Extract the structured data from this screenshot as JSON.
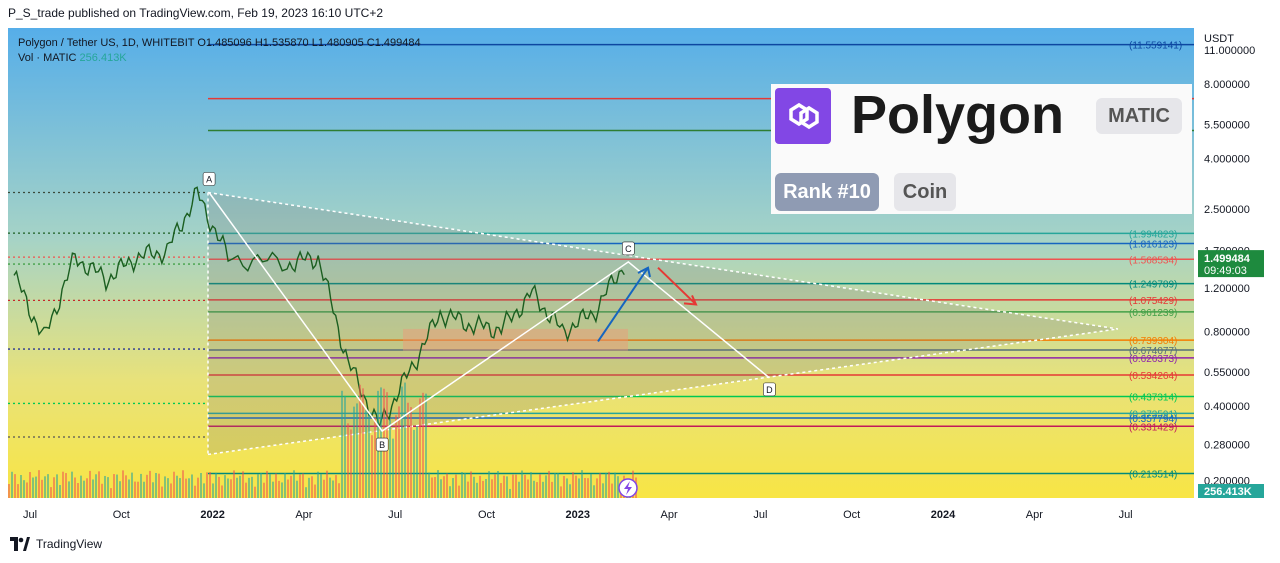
{
  "publisher": "P_S_trade published on TradingView.com, Feb 19, 2023 16:10 UTC+2",
  "legend": {
    "symbol": "Polygon / Tether US, 1D, WHITEBIT",
    "o": "O1.485096",
    "h": "H1.535870",
    "l": "L1.480905",
    "c": "C1.499484",
    "vol_label": "Vol · MATIC",
    "vol_value": "256.413K"
  },
  "badge": {
    "name": "Polygon",
    "ticker": "MATIC",
    "rank": "Rank #10",
    "kind": "Coin"
  },
  "footer": "TradingView",
  "colors": {
    "price_label_bg": "#1e8a3e",
    "volume_label_bg": "#26a69a",
    "gradient_top": "#5aaee8",
    "gradient_bottom": "#f7e34a",
    "brand": "#8247e5"
  },
  "chart_data": {
    "type": "line",
    "title": "Polygon / Tether US, 1D, WHITEBIT",
    "currency": "USDT",
    "yscale": "log",
    "ylim": [
      0.17,
      13.5
    ],
    "y_ticks": [
      "11.000000",
      "8.000000",
      "5.500000",
      "4.000000",
      "2.500000",
      "1.700000",
      "1.200000",
      "0.800000",
      "0.550000",
      "0.400000",
      "0.280000",
      "0.200000"
    ],
    "y_tick_values": [
      11,
      8,
      5.5,
      4,
      2.5,
      1.7,
      1.2,
      0.8,
      0.55,
      0.4,
      0.28,
      0.2
    ],
    "x_ticks": [
      "Jul",
      "Oct",
      "2022",
      "Apr",
      "Jul",
      "Oct",
      "2023",
      "Apr",
      "Jul",
      "Oct",
      "2024",
      "Apr",
      "Jul"
    ],
    "last_price": "1.499484",
    "countdown": "09:49:03",
    "volume_last": "256.413K",
    "price_path": [
      {
        "x": "2021-06",
        "y": 1.35
      },
      {
        "x": "2021-07",
        "y": 0.75
      },
      {
        "x": "2021-08",
        "y": 1.6
      },
      {
        "x": "2021-09",
        "y": 1.3
      },
      {
        "x": "2021-10",
        "y": 1.6
      },
      {
        "x": "2021-11",
        "y": 1.7
      },
      {
        "x": "2021-12",
        "y": 2.9
      },
      {
        "x": "2022-01",
        "y": 1.6
      },
      {
        "x": "2022-03",
        "y": 1.5
      },
      {
        "x": "2022-04",
        "y": 1.6
      },
      {
        "x": "2022-05",
        "y": 0.6
      },
      {
        "x": "2022-06",
        "y": 0.33
      },
      {
        "x": "2022-07",
        "y": 0.55
      },
      {
        "x": "2022-08",
        "y": 0.95
      },
      {
        "x": "2022-09",
        "y": 0.85
      },
      {
        "x": "2022-10",
        "y": 0.82
      },
      {
        "x": "2022-11",
        "y": 1.15
      },
      {
        "x": "2022-12",
        "y": 0.8
      },
      {
        "x": "2023-01",
        "y": 0.95
      },
      {
        "x": "2023-02",
        "y": 1.5
      }
    ],
    "points": [
      {
        "label": "A",
        "x": "2021-12-27",
        "y": 2.92
      },
      {
        "label": "B",
        "x": "2022-06-18",
        "y": 0.317
      },
      {
        "label": "C",
        "x": "2023-02-19",
        "y": 1.53
      },
      {
        "label": "D",
        "x": "2023-07-10",
        "y": 0.52
      }
    ],
    "levels": [
      {
        "label": "(11.559141)",
        "value": 11.559141,
        "color": "#0d47a1"
      },
      {
        "label": "",
        "value": 7.0,
        "color": "#e53935"
      },
      {
        "label": "",
        "value": 5.2,
        "color": "#2e7d32"
      },
      {
        "label": "(1.994823)",
        "value": 1.994823,
        "color": "#26a69a"
      },
      {
        "label": "(1.816123)",
        "value": 1.816123,
        "color": "#1565c0"
      },
      {
        "label": "(1.568534)",
        "value": 1.568534,
        "color": "#ef5350"
      },
      {
        "label": "(1.249789)",
        "value": 1.249789,
        "color": "#00897b"
      },
      {
        "label": "(1.075429)",
        "value": 1.075429,
        "color": "#e53935"
      },
      {
        "label": "(0.961239)",
        "value": 0.961239,
        "color": "#43a047"
      },
      {
        "label": "(0.739304)",
        "value": 0.739304,
        "color": "#f57c00"
      },
      {
        "label": "(0.674077)",
        "value": 0.674077,
        "color": "#546e7a"
      },
      {
        "label": "(0.626373)",
        "value": 0.626373,
        "color": "#8e24aa"
      },
      {
        "label": "(0.534264)",
        "value": 0.534264,
        "color": "#e53935"
      },
      {
        "label": "(0.437314)",
        "value": 0.437314,
        "color": "#00c853"
      },
      {
        "label": "(0.373591)",
        "value": 0.373591,
        "color": "#26a69a"
      },
      {
        "label": "(0.357794)",
        "value": 0.357794,
        "color": "#1565c0"
      },
      {
        "label": "(0.331429)",
        "value": 0.331429,
        "color": "#c2185b"
      },
      {
        "label": "(0.213514)",
        "value": 0.213514,
        "color": "#00897b"
      }
    ]
  }
}
